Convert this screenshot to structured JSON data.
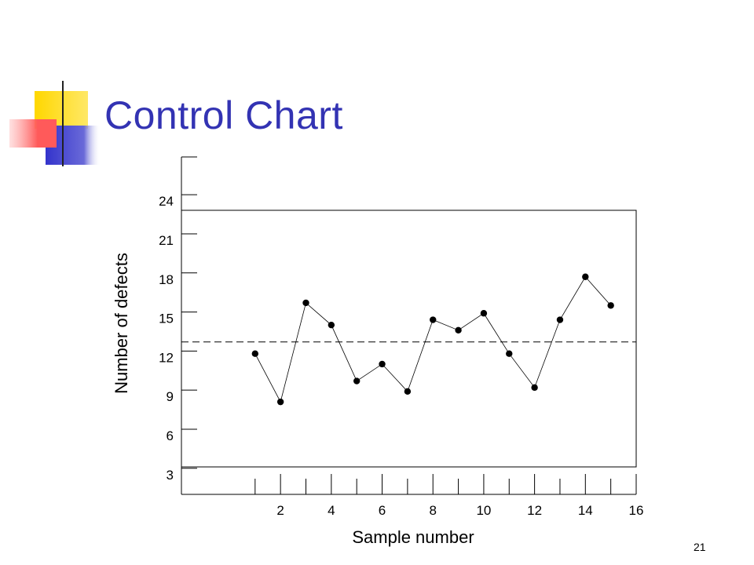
{
  "slide": {
    "title": "Control Chart",
    "number": "21"
  },
  "colors": {
    "title": "#3333b3",
    "deco_yellow": "#ffd700",
    "deco_blue": "#3333cc",
    "deco_red": "#ff5a5a",
    "deco_lines": "#222222"
  },
  "chart_data": {
    "type": "line",
    "title": "",
    "xlabel": "Sample number",
    "ylabel": "Number of defects",
    "x_ticks": [
      2,
      4,
      6,
      8,
      10,
      12,
      14,
      16
    ],
    "y_ticks": [
      3,
      6,
      9,
      12,
      15,
      18,
      21,
      24
    ],
    "xlim": [
      -1.9,
      16
    ],
    "ylim": [
      1,
      26.9
    ],
    "center_line": 12.7,
    "upper_limit": 22.7,
    "lower_limit": 2.0,
    "series": [
      {
        "x": [
          1,
          2,
          3,
          4,
          5,
          6,
          7,
          8,
          9,
          10,
          11,
          12,
          13,
          14,
          15
        ],
        "y": [
          11.8,
          8.1,
          15.7,
          14.0,
          9.7,
          11.0,
          8.9,
          14.4,
          13.6,
          14.9,
          11.8,
          9.2,
          14.4,
          17.7,
          15.5
        ],
        "marker": "circle"
      }
    ]
  }
}
